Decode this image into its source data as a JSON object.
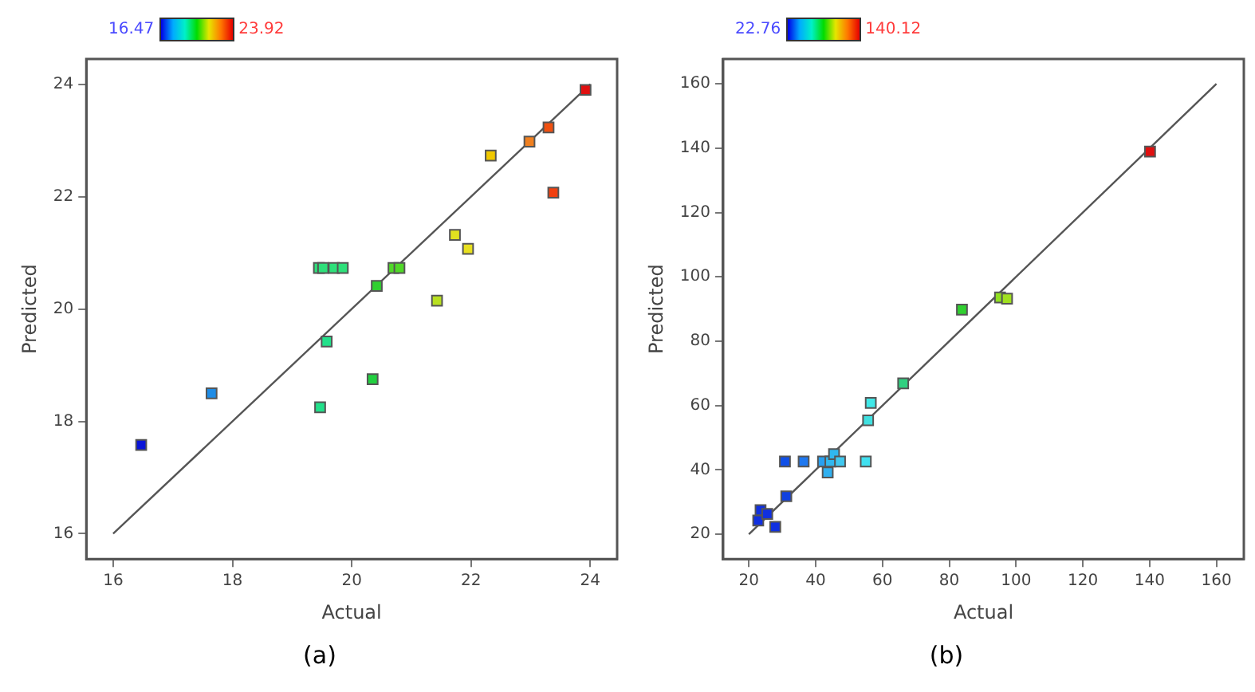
{
  "chart_data": [
    {
      "type": "scatter",
      "xlabel": "Actual",
      "ylabel": "Predicted",
      "xlim": [
        15.55,
        24.45
      ],
      "ylim": [
        15.55,
        24.45
      ],
      "xticks": [
        16,
        18,
        20,
        22,
        24
      ],
      "yticks": [
        16,
        18,
        20,
        22,
        24
      ],
      "grid": false,
      "marker": "square",
      "annotations": [
        "16.47",
        "23.92",
        "(a)"
      ],
      "series": [
        {
          "x": [
            16.47,
            17.65,
            19.47,
            19.58,
            19.45,
            19.52,
            19.7,
            19.85,
            20.35,
            20.42,
            20.7,
            20.8,
            21.43,
            21.73,
            21.95,
            22.33,
            22.98,
            23.3,
            23.38,
            23.92
          ],
          "values": [
            17.58,
            18.5,
            18.25,
            19.42,
            20.73,
            20.73,
            20.73,
            20.73,
            18.75,
            20.41,
            20.73,
            20.73,
            20.15,
            21.32,
            21.07,
            22.73,
            22.98,
            23.23,
            22.07,
            23.9
          ],
          "colors": [
            "#0a14d8",
            "#1e8ce6",
            "#22e08a",
            "#22e08a",
            "#2ee07a",
            "#2ee07a",
            "#2ee07a",
            "#2ee07a",
            "#22d040",
            "#30d030",
            "#50d828",
            "#50d828",
            "#b8e020",
            "#e0e020",
            "#e8e020",
            "#f0c800",
            "#f08020",
            "#f05010",
            "#f04010",
            "#e01010"
          ]
        },
        {
          "type": "line",
          "marker": "none",
          "x": [
            16,
            24
          ],
          "values": [
            16,
            24
          ],
          "color": "#555555"
        }
      ]
    },
    {
      "type": "scatter",
      "xlabel": "Actual",
      "ylabel": "Predicted",
      "xlim": [
        12.3,
        168.2
      ],
      "ylim": [
        12.3,
        167.7
      ],
      "xticks": [
        20,
        40,
        60,
        80,
        100,
        120,
        140,
        160
      ],
      "yticks": [
        20,
        40,
        60,
        80,
        100,
        120,
        140,
        160
      ],
      "grid": false,
      "marker": "square",
      "annotations": [
        "22.76",
        "140.12",
        "(b)"
      ],
      "series": [
        {
          "x": [
            22.8,
            23.5,
            25.5,
            27.9,
            31.2,
            30.8,
            36.4,
            42.2,
            43.6,
            44.4,
            45.5,
            47.3,
            55,
            55.7,
            56.5,
            66.2,
            83.8,
            95.2,
            97.3,
            140.12
          ],
          "values": [
            24.3,
            27.5,
            26.3,
            22.3,
            31.8,
            42.6,
            42.6,
            42.6,
            39.2,
            42.6,
            44.9,
            42.6,
            42.6,
            55.4,
            60.8,
            66.9,
            89.8,
            93.6,
            93.2,
            138.9
          ],
          "colors": [
            "#1030e0",
            "#1030e0",
            "#1030e0",
            "#1030e0",
            "#1040e0",
            "#1050e8",
            "#1e78f0",
            "#28a0f0",
            "#30b0f0",
            "#30b8f0",
            "#30b8f0",
            "#40c8f0",
            "#40e0f0",
            "#40e0e0",
            "#40e8e8",
            "#30d080",
            "#30d030",
            "#90e020",
            "#a0e020",
            "#e01010"
          ]
        },
        {
          "type": "line",
          "marker": "none",
          "x": [
            20,
            160
          ],
          "values": [
            20,
            160
          ],
          "color": "#555555"
        }
      ]
    }
  ]
}
